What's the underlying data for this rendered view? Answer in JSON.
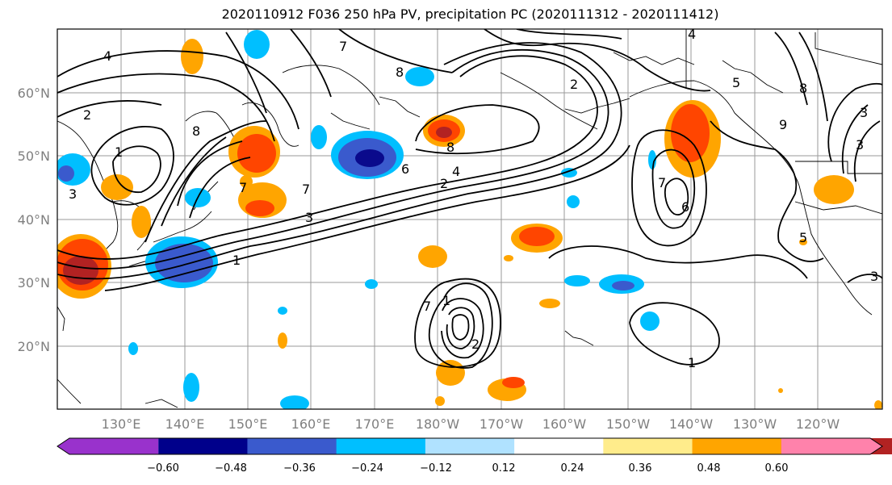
{
  "title": "2020110912 F036 250 hPa PV, precipitation PC (2020111312 - 2020111412)",
  "map": {
    "lat_labels": [
      "60°N",
      "50°N",
      "40°N",
      "30°N",
      "20°N"
    ],
    "lon_labels": [
      "130°E",
      "140°E",
      "150°E",
      "160°E",
      "170°E",
      "180°W",
      "170°W",
      "160°W",
      "150°W",
      "140°W",
      "130°W",
      "120°W"
    ],
    "contour_labels": [
      "4",
      "7",
      "8",
      "2",
      "5",
      "8",
      "9",
      "3",
      "3",
      "2",
      "1",
      "3",
      "8",
      "8",
      "6",
      "4",
      "2",
      "7",
      "7",
      "3",
      "1",
      "7",
      "6",
      "7",
      "1",
      "2",
      "1",
      "5",
      "3",
      "4"
    ],
    "shading_colors": {
      "strong_negative": "#0a0a8c",
      "negative": "#3a5acd",
      "moderate_negative": "#00bfff",
      "positive": "#ffa500",
      "moderate_positive": "#ff4500",
      "strong_positive": "#b22222"
    }
  },
  "colorbar": {
    "ticks": [
      "−0.60",
      "−0.48",
      "−0.36",
      "−0.24",
      "−0.12",
      "0.12",
      "0.24",
      "0.36",
      "0.48",
      "0.60"
    ],
    "colors": [
      "#9932cc",
      "#00008b",
      "#3a5acd",
      "#00bfff",
      "#b0e2ff",
      "#ffffff",
      "#ffec8b",
      "#ffa500",
      "#ff4500",
      "#b22222",
      "#ff82ab"
    ]
  }
}
